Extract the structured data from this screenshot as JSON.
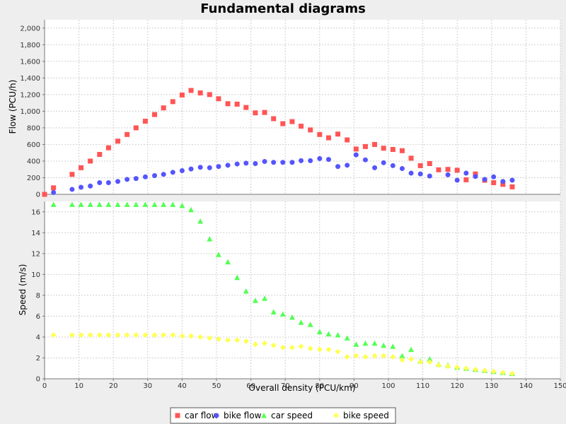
{
  "chart_data": {
    "type": "scatter",
    "title": "Fundamental diagrams",
    "xlabel": "Overall density (PCU/km)",
    "xlim": [
      0,
      150
    ],
    "x_ticks": [
      0,
      10,
      20,
      30,
      40,
      50,
      60,
      70,
      80,
      90,
      100,
      110,
      120,
      130,
      140,
      150
    ],
    "grid": true,
    "legend_position": "bottom",
    "subplots": [
      {
        "ylabel": "Flow (PCU/h)",
        "ylim": [
          0,
          2100
        ],
        "y_ticks": [
          0,
          200,
          400,
          600,
          800,
          1000,
          1200,
          1400,
          1600,
          1800,
          2000
        ],
        "y_tick_labels": [
          "0",
          "200",
          "400",
          "600",
          "800",
          "1,000",
          "1,200",
          "1,400",
          "1,600",
          "1,800",
          "2,000"
        ],
        "series": [
          {
            "name": "car flow",
            "marker": "square",
            "color": "#ff5555",
            "points": [
              [
                0,
                0
              ],
              [
                2.6,
                78
              ],
              [
                8,
                240
              ],
              [
                10.6,
                320
              ],
              [
                13.3,
                400
              ],
              [
                16,
                480
              ],
              [
                18.6,
                560
              ],
              [
                21.3,
                640
              ],
              [
                24,
                720
              ],
              [
                26.6,
                800
              ],
              [
                29.3,
                880
              ],
              [
                32,
                960
              ],
              [
                34.6,
                1040
              ],
              [
                37.3,
                1115
              ],
              [
                40,
                1195
              ],
              [
                42.6,
                1250
              ],
              [
                45.3,
                1220
              ],
              [
                48,
                1200
              ],
              [
                50.6,
                1150
              ],
              [
                53.3,
                1090
              ],
              [
                56,
                1085
              ],
              [
                58.6,
                1045
              ],
              [
                61.3,
                980
              ],
              [
                64,
                985
              ],
              [
                66.6,
                910
              ],
              [
                69.3,
                850
              ],
              [
                72,
                875
              ],
              [
                74.6,
                820
              ],
              [
                77.3,
                775
              ],
              [
                80,
                720
              ],
              [
                82.6,
                680
              ],
              [
                85.3,
                725
              ],
              [
                88,
                655
              ],
              [
                90.6,
                545
              ],
              [
                93.3,
                575
              ],
              [
                96,
                600
              ],
              [
                98.6,
                555
              ],
              [
                101.3,
                540
              ],
              [
                104,
                525
              ],
              [
                106.6,
                435
              ],
              [
                109.3,
                345
              ],
              [
                112,
                370
              ],
              [
                114.6,
                295
              ],
              [
                117.3,
                300
              ],
              [
                120,
                290
              ],
              [
                122.6,
                175
              ],
              [
                125.3,
                245
              ],
              [
                128,
                170
              ],
              [
                130.6,
                140
              ],
              [
                133.3,
                120
              ],
              [
                136,
                90
              ]
            ]
          },
          {
            "name": "bike flow",
            "marker": "circle",
            "color": "#5555ff",
            "points": [
              [
                2.6,
                22
              ],
              [
                8,
                60
              ],
              [
                10.6,
                85
              ],
              [
                13.3,
                100
              ],
              [
                16,
                140
              ],
              [
                18.6,
                140
              ],
              [
                21.3,
                155
              ],
              [
                24,
                180
              ],
              [
                26.6,
                190
              ],
              [
                29.3,
                210
              ],
              [
                32,
                225
              ],
              [
                34.6,
                240
              ],
              [
                37.3,
                265
              ],
              [
                40,
                285
              ],
              [
                42.6,
                305
              ],
              [
                45.3,
                325
              ],
              [
                48,
                320
              ],
              [
                50.6,
                335
              ],
              [
                53.3,
                350
              ],
              [
                56,
                365
              ],
              [
                58.6,
                375
              ],
              [
                61.3,
                370
              ],
              [
                64,
                395
              ],
              [
                66.6,
                385
              ],
              [
                69.3,
                385
              ],
              [
                72,
                385
              ],
              [
                74.6,
                405
              ],
              [
                77.3,
                405
              ],
              [
                80,
                430
              ],
              [
                82.6,
                420
              ],
              [
                85.3,
                335
              ],
              [
                88,
                350
              ],
              [
                90.6,
                475
              ],
              [
                93.3,
                415
              ],
              [
                96,
                320
              ],
              [
                98.6,
                380
              ],
              [
                101.3,
                345
              ],
              [
                104,
                310
              ],
              [
                106.6,
                255
              ],
              [
                109.3,
                245
              ],
              [
                112,
                220
              ],
              [
                117.3,
                235
              ],
              [
                120,
                170
              ],
              [
                122.6,
                255
              ],
              [
                125.3,
                215
              ],
              [
                128,
                180
              ],
              [
                130.6,
                210
              ],
              [
                133.3,
                155
              ],
              [
                136,
                170
              ]
            ]
          }
        ]
      },
      {
        "ylabel": "Speed (m/s)",
        "ylim": [
          0,
          17
        ],
        "y_ticks": [
          0,
          2,
          4,
          6,
          8,
          10,
          12,
          14,
          16
        ],
        "y_tick_labels": [
          "0",
          "2",
          "4",
          "6",
          "8",
          "10",
          "12",
          "14",
          "16"
        ],
        "series": [
          {
            "name": "car speed",
            "marker": "triangle",
            "color": "#55ff55",
            "points": [
              [
                2.6,
                16.7
              ],
              [
                8,
                16.7
              ],
              [
                10.6,
                16.7
              ],
              [
                13.3,
                16.7
              ],
              [
                16,
                16.7
              ],
              [
                18.6,
                16.7
              ],
              [
                21.3,
                16.7
              ],
              [
                24,
                16.7
              ],
              [
                26.6,
                16.7
              ],
              [
                29.3,
                16.7
              ],
              [
                32,
                16.7
              ],
              [
                34.6,
                16.7
              ],
              [
                37.3,
                16.7
              ],
              [
                40,
                16.6
              ],
              [
                42.6,
                16.2
              ],
              [
                45.3,
                15.1
              ],
              [
                48,
                13.4
              ],
              [
                50.6,
                11.9
              ],
              [
                53.3,
                11.2
              ],
              [
                56,
                9.7
              ],
              [
                58.6,
                8.4
              ],
              [
                61.3,
                7.5
              ],
              [
                64,
                7.7
              ],
              [
                66.6,
                6.4
              ],
              [
                69.3,
                6.2
              ],
              [
                72,
                5.9
              ],
              [
                74.6,
                5.4
              ],
              [
                77.3,
                5.2
              ],
              [
                80,
                4.5
              ],
              [
                82.6,
                4.3
              ],
              [
                85.3,
                4.2
              ],
              [
                88,
                3.9
              ],
              [
                90.6,
                3.3
              ],
              [
                93.3,
                3.4
              ],
              [
                96,
                3.4
              ],
              [
                98.6,
                3.2
              ],
              [
                101.3,
                3.1
              ],
              [
                104,
                2.2
              ],
              [
                106.6,
                2.8
              ],
              [
                109.3,
                1.7
              ],
              [
                112,
                1.9
              ],
              [
                114.6,
                1.4
              ],
              [
                117.3,
                1.3
              ],
              [
                120,
                1.1
              ],
              [
                122.6,
                1.0
              ],
              [
                125.3,
                0.9
              ],
              [
                128,
                0.8
              ],
              [
                130.6,
                0.7
              ],
              [
                133.3,
                0.6
              ],
              [
                136,
                0.5
              ]
            ]
          },
          {
            "name": "bike speed",
            "marker": "diamond",
            "color": "#ffff55",
            "points": [
              [
                2.6,
                4.2
              ],
              [
                8,
                4.2
              ],
              [
                10.6,
                4.2
              ],
              [
                13.3,
                4.2
              ],
              [
                16,
                4.2
              ],
              [
                18.6,
                4.2
              ],
              [
                21.3,
                4.2
              ],
              [
                24,
                4.2
              ],
              [
                26.6,
                4.2
              ],
              [
                29.3,
                4.2
              ],
              [
                32,
                4.2
              ],
              [
                34.6,
                4.2
              ],
              [
                37.3,
                4.2
              ],
              [
                40,
                4.1
              ],
              [
                42.6,
                4.1
              ],
              [
                45.3,
                4.0
              ],
              [
                48,
                3.9
              ],
              [
                50.6,
                3.8
              ],
              [
                53.3,
                3.7
              ],
              [
                56,
                3.7
              ],
              [
                58.6,
                3.6
              ],
              [
                61.3,
                3.3
              ],
              [
                64,
                3.4
              ],
              [
                66.6,
                3.2
              ],
              [
                69.3,
                3.0
              ],
              [
                72,
                3.0
              ],
              [
                74.6,
                3.1
              ],
              [
                77.3,
                2.9
              ],
              [
                80,
                2.8
              ],
              [
                82.6,
                2.8
              ],
              [
                85.3,
                2.6
              ],
              [
                88,
                2.1
              ],
              [
                90.6,
                2.2
              ],
              [
                93.3,
                2.1
              ],
              [
                96,
                2.2
              ],
              [
                98.6,
                2.2
              ],
              [
                101.3,
                2.1
              ],
              [
                104,
                1.8
              ],
              [
                106.6,
                1.9
              ],
              [
                109.3,
                1.6
              ],
              [
                112,
                1.6
              ],
              [
                114.6,
                1.3
              ],
              [
                117.3,
                1.2
              ],
              [
                120,
                1.1
              ],
              [
                122.6,
                1.0
              ],
              [
                125.3,
                0.9
              ],
              [
                128,
                0.8
              ],
              [
                130.6,
                0.7
              ],
              [
                133.3,
                0.6
              ],
              [
                136,
                0.5
              ]
            ]
          }
        ]
      }
    ]
  }
}
